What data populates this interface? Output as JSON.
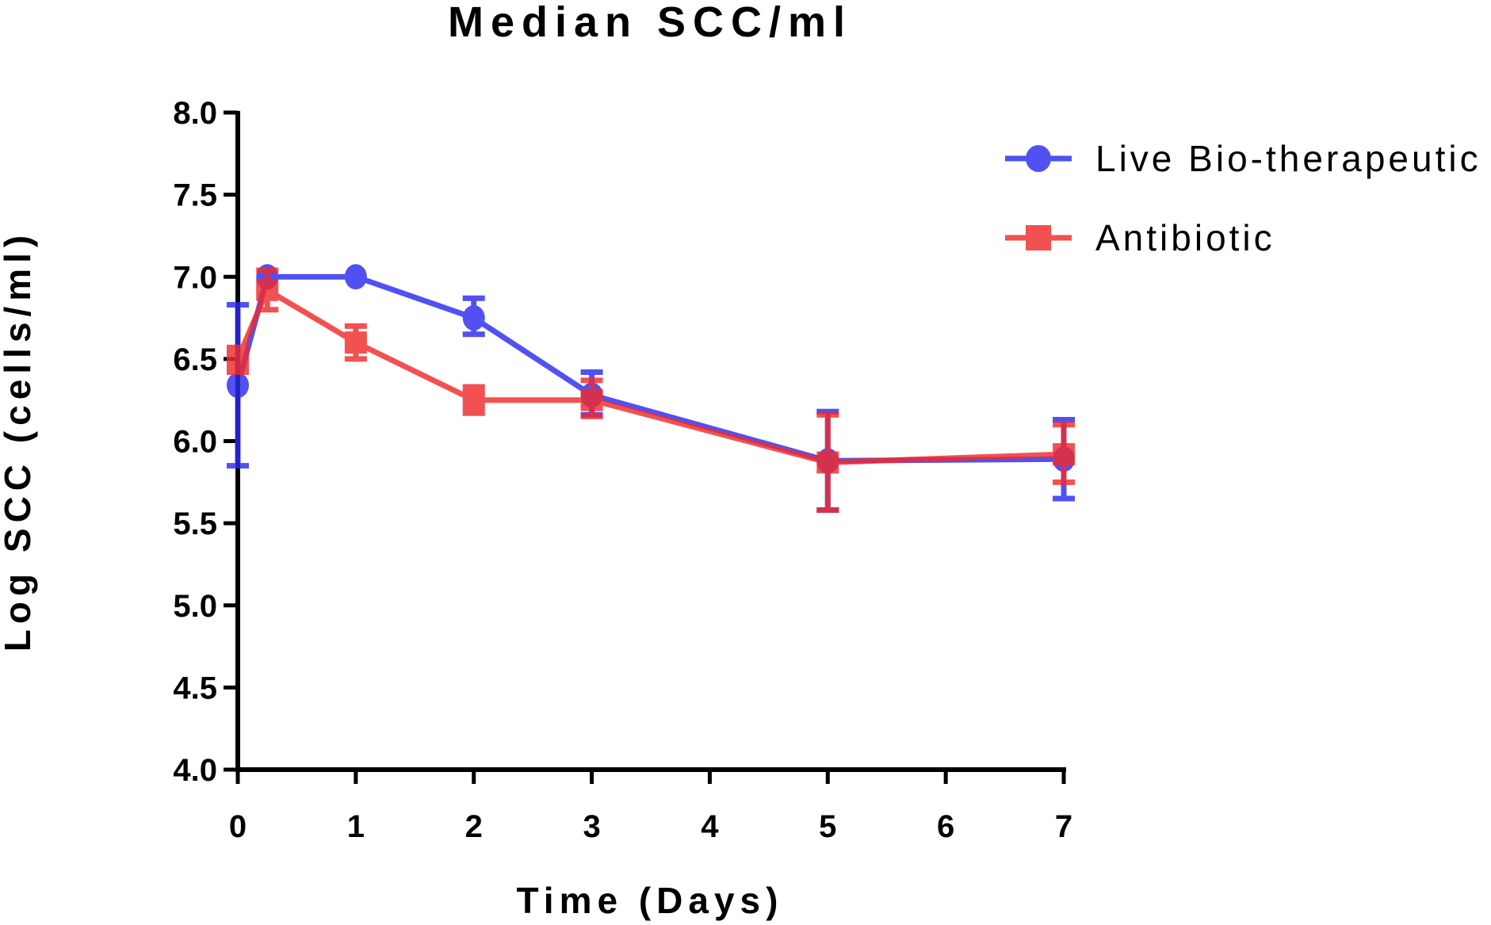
{
  "chart_data": {
    "type": "line",
    "title": "Median SCC/ml",
    "xlabel": "Time (Days)",
    "ylabel": "Log SCC (cells/ml)",
    "xlim": [
      0,
      7
    ],
    "ylim": [
      4.0,
      8.0
    ],
    "x_ticks": [
      "0",
      "1",
      "2",
      "3",
      "4",
      "5",
      "6",
      "7"
    ],
    "y_ticks": [
      "4.0",
      "4.5",
      "5.0",
      "5.5",
      "6.0",
      "6.5",
      "7.0",
      "7.5",
      "8.0"
    ],
    "grid": false,
    "legend_position": "top-right",
    "series": [
      {
        "name": "Live Bio-therapeutic",
        "color": "#2b2bf0",
        "marker": "circle",
        "points": [
          {
            "x": 0,
            "y": 6.34,
            "err_low": 5.85,
            "err_high": 6.83
          },
          {
            "x": 0.25,
            "y": 7.0,
            "err_low": 7.0,
            "err_high": 7.0
          },
          {
            "x": 1,
            "y": 7.0,
            "err_low": 7.0,
            "err_high": 7.0
          },
          {
            "x": 2,
            "y": 6.75,
            "err_low": 6.65,
            "err_high": 6.87
          },
          {
            "x": 3,
            "y": 6.28,
            "err_low": 6.16,
            "err_high": 6.42
          },
          {
            "x": 5,
            "y": 5.88,
            "err_low": 5.58,
            "err_high": 6.18
          },
          {
            "x": 7,
            "y": 5.89,
            "err_low": 5.65,
            "err_high": 6.13
          }
        ]
      },
      {
        "name": "Antibiotic",
        "color": "#f02b2b",
        "marker": "square",
        "points": [
          {
            "x": 0,
            "y": 6.5,
            "err_low": 6.42,
            "err_high": 6.57
          },
          {
            "x": 0.25,
            "y": 6.92,
            "err_low": 6.8,
            "err_high": 7.04
          },
          {
            "x": 1,
            "y": 6.6,
            "err_low": 6.5,
            "err_high": 6.7
          },
          {
            "x": 2,
            "y": 6.25,
            "err_low": 6.17,
            "err_high": 6.33
          },
          {
            "x": 3,
            "y": 6.25,
            "err_low": 6.15,
            "err_high": 6.37
          },
          {
            "x": 5,
            "y": 5.87,
            "err_low": 5.58,
            "err_high": 6.16
          },
          {
            "x": 7,
            "y": 5.92,
            "err_low": 5.75,
            "err_high": 6.1
          }
        ]
      }
    ]
  }
}
